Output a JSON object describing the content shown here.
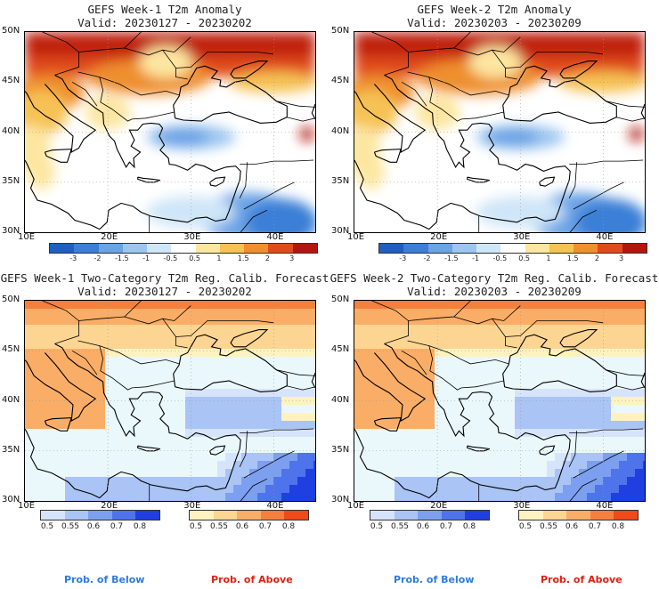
{
  "panels": [
    {
      "title": "GEFS Week-1 T2m Anomaly",
      "valid": "Valid: 20230127 - 20230202",
      "kind": "anomaly"
    },
    {
      "title": "GEFS Week-2 T2m Anomaly",
      "valid": "Valid: 20230203 - 20230209",
      "kind": "anomaly"
    },
    {
      "title": "GEFS Week-1 Two-Category T2m Reg. Calib. Forecast",
      "valid": "Valid: 20230127 - 20230202",
      "kind": "prob"
    },
    {
      "title": "GEFS Week-2 Two-Category T2m Reg. Calib. Forecast",
      "valid": "Valid: 20230203 - 20230209",
      "kind": "prob"
    }
  ],
  "axes": {
    "lat_labels": [
      "50N",
      "45N",
      "40N",
      "35N",
      "30N"
    ],
    "lon_labels": [
      "10E",
      "20E",
      "30E",
      "40E"
    ]
  },
  "anomaly_colorbar": {
    "ticks": [
      "-3",
      "-2",
      "-1.5",
      "-1",
      "-0.5",
      "0.5",
      "1",
      "1.5",
      "2",
      "3"
    ],
    "colors": [
      "#1f5fbf",
      "#3a7fd6",
      "#6aa3e6",
      "#9cc6f0",
      "#cfe6f8",
      "#ffffff",
      "#fde6a0",
      "#f6c255",
      "#ef8f2e",
      "#e04b1c",
      "#b3160e"
    ]
  },
  "prob_colorbars": {
    "below": {
      "ticks": [
        "0.5",
        "0.55",
        "0.6",
        "0.7",
        "0.8"
      ],
      "colors": [
        "#d6e4fb",
        "#a9c4f5",
        "#7d9ff0",
        "#4f73ea",
        "#1f3fe0"
      ]
    },
    "above": {
      "ticks": [
        "0.5",
        "0.55",
        "0.6",
        "0.7",
        "0.8"
      ],
      "colors": [
        "#fff2c0",
        "#fdd592",
        "#f9ad66",
        "#f5803c",
        "#ef4a17"
      ]
    }
  },
  "legend": {
    "below": "Prob. of Below",
    "above": "Prob. of Above",
    "below_color": "#2a7be0",
    "above_color": "#e02010"
  }
}
